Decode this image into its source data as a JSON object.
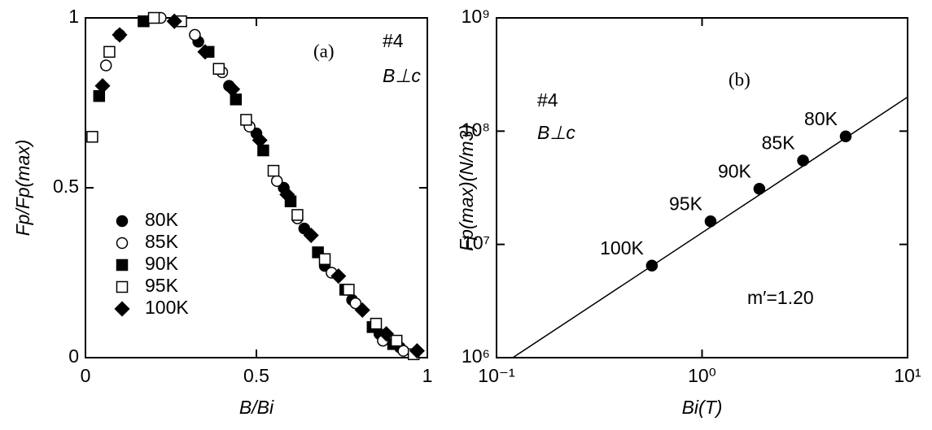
{
  "chart_data": [
    {
      "type": "scatter",
      "ylabel": "Fp/Fp(max)",
      "xlabel": "B/Bi",
      "annotations": [
        "(a)",
        "#4",
        "B⊥c"
      ],
      "xlim": [
        0,
        1
      ],
      "ylim": [
        0,
        1
      ],
      "xticks": [
        0,
        0.5,
        1
      ],
      "yticks": [
        0,
        0.5,
        1
      ],
      "log": false,
      "legend": "lower left",
      "series": [
        {
          "name": "80K",
          "color": "#000",
          "marker": "circle",
          "filled": true,
          "x": [
            0.1,
            0.33,
            0.42,
            0.5,
            0.58,
            0.64,
            0.7,
            0.78,
            0.86,
            0.92
          ],
          "values": [
            0.95,
            0.93,
            0.8,
            0.66,
            0.5,
            0.38,
            0.27,
            0.17,
            0.07,
            0.03
          ]
        },
        {
          "name": "85K",
          "color": "#000",
          "marker": "circle",
          "filled": false,
          "x": [
            0.06,
            0.22,
            0.32,
            0.4,
            0.48,
            0.56,
            0.62,
            0.72,
            0.79,
            0.87,
            0.93
          ],
          "values": [
            0.86,
            1.0,
            0.95,
            0.84,
            0.68,
            0.52,
            0.41,
            0.25,
            0.16,
            0.05,
            0.02
          ]
        },
        {
          "name": "90K",
          "color": "#000",
          "marker": "square",
          "filled": true,
          "x": [
            0.04,
            0.17,
            0.36,
            0.44,
            0.52,
            0.6,
            0.68,
            0.76,
            0.84,
            0.9
          ],
          "values": [
            0.77,
            0.99,
            0.9,
            0.76,
            0.61,
            0.46,
            0.31,
            0.2,
            0.09,
            0.04
          ]
        },
        {
          "name": "95K",
          "color": "#000",
          "marker": "square",
          "filled": false,
          "x": [
            0.02,
            0.07,
            0.2,
            0.28,
            0.39,
            0.47,
            0.55,
            0.62,
            0.7,
            0.77,
            0.85,
            0.91,
            0.96
          ],
          "values": [
            0.65,
            0.9,
            1.0,
            0.99,
            0.85,
            0.7,
            0.55,
            0.42,
            0.29,
            0.2,
            0.1,
            0.05,
            0.01
          ]
        },
        {
          "name": "100K",
          "color": "#000",
          "marker": "diamond",
          "filled": true,
          "x": [
            0.05,
            0.1,
            0.26,
            0.35,
            0.43,
            0.51,
            0.59,
            0.66,
            0.74,
            0.81,
            0.88,
            0.97
          ],
          "values": [
            0.8,
            0.95,
            0.99,
            0.9,
            0.79,
            0.64,
            0.48,
            0.36,
            0.24,
            0.14,
            0.07,
            0.02
          ]
        }
      ]
    },
    {
      "type": "scatter",
      "ylabel": "Fp(max)(N/m3)",
      "xlabel": "Bi(T)",
      "annotations": [
        "#4",
        "B⊥c",
        "(b)",
        "m′=1.20"
      ],
      "xlim": [
        0.1,
        10
      ],
      "ylim": [
        1000000,
        1000000000
      ],
      "log": true,
      "legend": "none",
      "xticks": [
        {
          "value": 0.1,
          "label": "10⁻¹"
        },
        {
          "value": 1,
          "label": "10⁰"
        },
        {
          "value": 10,
          "label": "10¹"
        }
      ],
      "yticks": [
        {
          "value": 1000000,
          "label": "10⁶"
        },
        {
          "value": 10000000,
          "label": "10⁷"
        },
        {
          "value": 100000000,
          "label": "10⁸"
        },
        {
          "value": 1000000000,
          "label": "10⁹"
        }
      ],
      "series": [
        {
          "color": "#000",
          "marker": "circle",
          "filled": true,
          "x": [
            0.57,
            1.1,
            1.9,
            3.1,
            5.0
          ],
          "values": [
            6500000,
            16000000,
            31000000,
            55000000,
            90000000
          ],
          "point_labels": [
            "100K",
            "95K",
            "90K",
            "85K",
            "80K"
          ]
        }
      ],
      "fit_line": {
        "x": [
          0.12,
          10
        ],
        "values": [
          1000000,
          200000000
        ]
      }
    }
  ]
}
